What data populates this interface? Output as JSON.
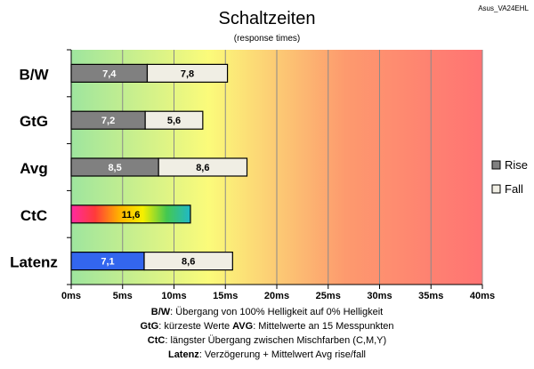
{
  "chart_data": {
    "type": "bar",
    "orientation": "horizontal",
    "stacked": true,
    "title": "Schaltzeiten",
    "subtitle": "(response times)",
    "model": "Asus_VA24EHL",
    "unit": "ms",
    "xlim": [
      0,
      40
    ],
    "x_ticks": [
      {
        "value": 0,
        "label": "0ms"
      },
      {
        "value": 5,
        "label": "5ms"
      },
      {
        "value": 10,
        "label": "10ms"
      },
      {
        "value": 15,
        "label": "15ms"
      },
      {
        "value": 20,
        "label": "20ms"
      },
      {
        "value": 25,
        "label": "25ms"
      },
      {
        "value": 30,
        "label": "30ms"
      },
      {
        "value": 35,
        "label": "35ms"
      },
      {
        "value": 40,
        "label": "40ms"
      }
    ],
    "grid": true,
    "background": "gradient green-yellow-red",
    "categories": [
      "B/W",
      "GtG",
      "Avg",
      "CtC",
      "Latenz"
    ],
    "rows": [
      {
        "category": "B/W",
        "segments": [
          {
            "series": "Rise",
            "value": 7.4,
            "label": "7,4",
            "style": "rise"
          },
          {
            "series": "Fall",
            "value": 7.8,
            "label": "7,8",
            "style": "fall"
          }
        ]
      },
      {
        "category": "GtG",
        "segments": [
          {
            "series": "Rise",
            "value": 7.2,
            "label": "7,2",
            "style": "rise"
          },
          {
            "series": "Fall",
            "value": 5.6,
            "label": "5,6",
            "style": "fall"
          }
        ]
      },
      {
        "category": "Avg",
        "segments": [
          {
            "series": "Rise",
            "value": 8.5,
            "label": "8,5",
            "style": "rise"
          },
          {
            "series": "Fall",
            "value": 8.6,
            "label": "8,6",
            "style": "fall"
          }
        ]
      },
      {
        "category": "CtC",
        "segments": [
          {
            "series": "CtC",
            "value": 11.6,
            "label": "11,6",
            "style": "rainbow"
          }
        ]
      },
      {
        "category": "Latenz",
        "segments": [
          {
            "series": "Latenz",
            "value": 7.1,
            "label": "7,1",
            "style": "latency"
          },
          {
            "series": "Fall",
            "value": 8.6,
            "label": "8,6",
            "style": "fall"
          }
        ]
      }
    ],
    "legend": {
      "placement": "right",
      "items": [
        {
          "label": "Rise",
          "style": "rise"
        },
        {
          "label": "Fall",
          "style": "fall"
        }
      ]
    },
    "colors": {
      "rise": "#808080",
      "fall": "#f0eee4",
      "latency": "#3366ee",
      "rainbow": [
        "#ff2aa0",
        "#ff3a3a",
        "#ffb000",
        "#f6f000",
        "#44c850",
        "#20b8c8"
      ],
      "gradient": [
        "#9ee59e",
        "#fbfb7a",
        "#fd9a6e",
        "#ff7373"
      ],
      "grid": "#8a8a8a"
    },
    "footnotes": [
      [
        {
          "bold": "B/W",
          "text": ":  Übergang von 100% Helligkeit auf 0% Helligkeit"
        }
      ],
      [
        {
          "bold": "GtG",
          "text": ": kürzeste  Werte        "
        },
        {
          "bold": "AVG",
          "text": ":  Mittelwerte  an 15 Messpunkten"
        }
      ],
      [
        {
          "bold": "CtC",
          "text": ": längster Übergang  zwischen Mischfarben  (C,M,Y)"
        }
      ],
      [
        {
          "bold": "Latenz",
          "text": ": Verzögerung  + Mittelwert  Avg rise/fall"
        }
      ]
    ]
  }
}
